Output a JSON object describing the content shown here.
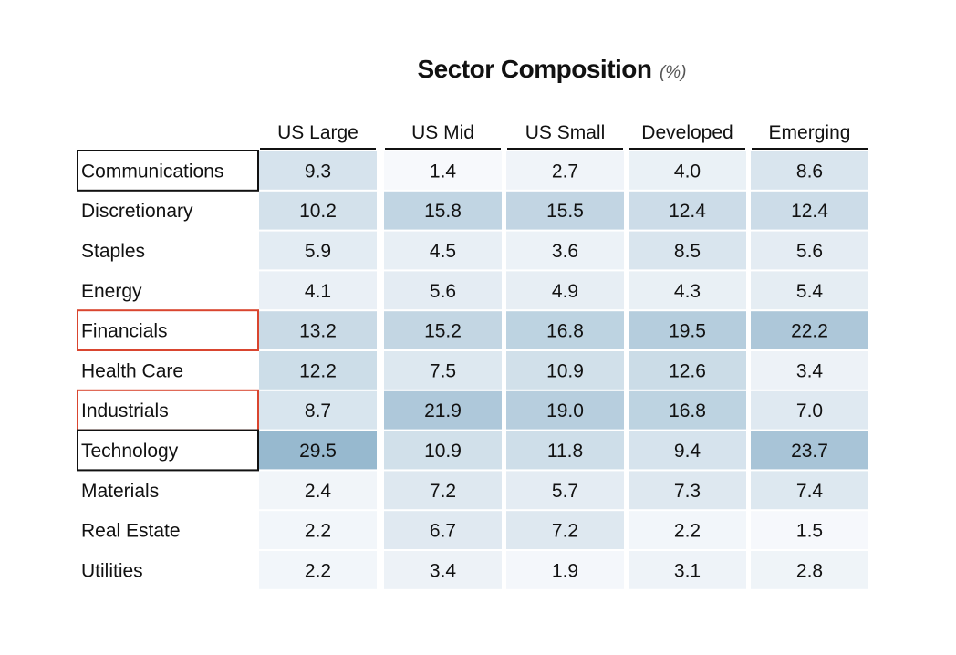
{
  "chart_data": {
    "type": "heatmap",
    "title": "Sector Composition",
    "unit_label": "(%)",
    "columns": [
      "US Large",
      "US Mid",
      "US Small",
      "Developed",
      "Emerging"
    ],
    "rows": [
      {
        "label": "Communications",
        "values": [
          9.3,
          1.4,
          2.7,
          4.0,
          8.6
        ],
        "outline": "black"
      },
      {
        "label": "Discretionary",
        "values": [
          10.2,
          15.8,
          15.5,
          12.4,
          12.4
        ],
        "outline": null
      },
      {
        "label": "Staples",
        "values": [
          5.9,
          4.5,
          3.6,
          8.5,
          5.6
        ],
        "outline": null
      },
      {
        "label": "Energy",
        "values": [
          4.1,
          5.6,
          4.9,
          4.3,
          5.4
        ],
        "outline": null
      },
      {
        "label": "Financials",
        "values": [
          13.2,
          15.2,
          16.8,
          19.5,
          22.2
        ],
        "outline": "red"
      },
      {
        "label": "Health Care",
        "values": [
          12.2,
          7.5,
          10.9,
          12.6,
          3.4
        ],
        "outline": null
      },
      {
        "label": "Industrials",
        "values": [
          8.7,
          21.9,
          19.0,
          16.8,
          7.0
        ],
        "outline": "red"
      },
      {
        "label": "Technology",
        "values": [
          29.5,
          10.9,
          11.8,
          9.4,
          23.7
        ],
        "outline": "black"
      },
      {
        "label": "Materials",
        "values": [
          2.4,
          7.2,
          5.7,
          7.3,
          7.4
        ],
        "outline": null
      },
      {
        "label": "Real Estate",
        "values": [
          2.2,
          6.7,
          7.2,
          2.2,
          1.5
        ],
        "outline": null
      },
      {
        "label": "Utilities",
        "values": [
          2.2,
          3.4,
          1.9,
          3.1,
          2.8
        ],
        "outline": null
      }
    ],
    "value_format": "one decimal place",
    "color_scale": {
      "low": "#f7f9fc",
      "high": "#97b9cf"
    },
    "colors": {
      "outline_black": "#111111",
      "outline_red": "#d9452f",
      "header_rule": "#111111"
    }
  }
}
